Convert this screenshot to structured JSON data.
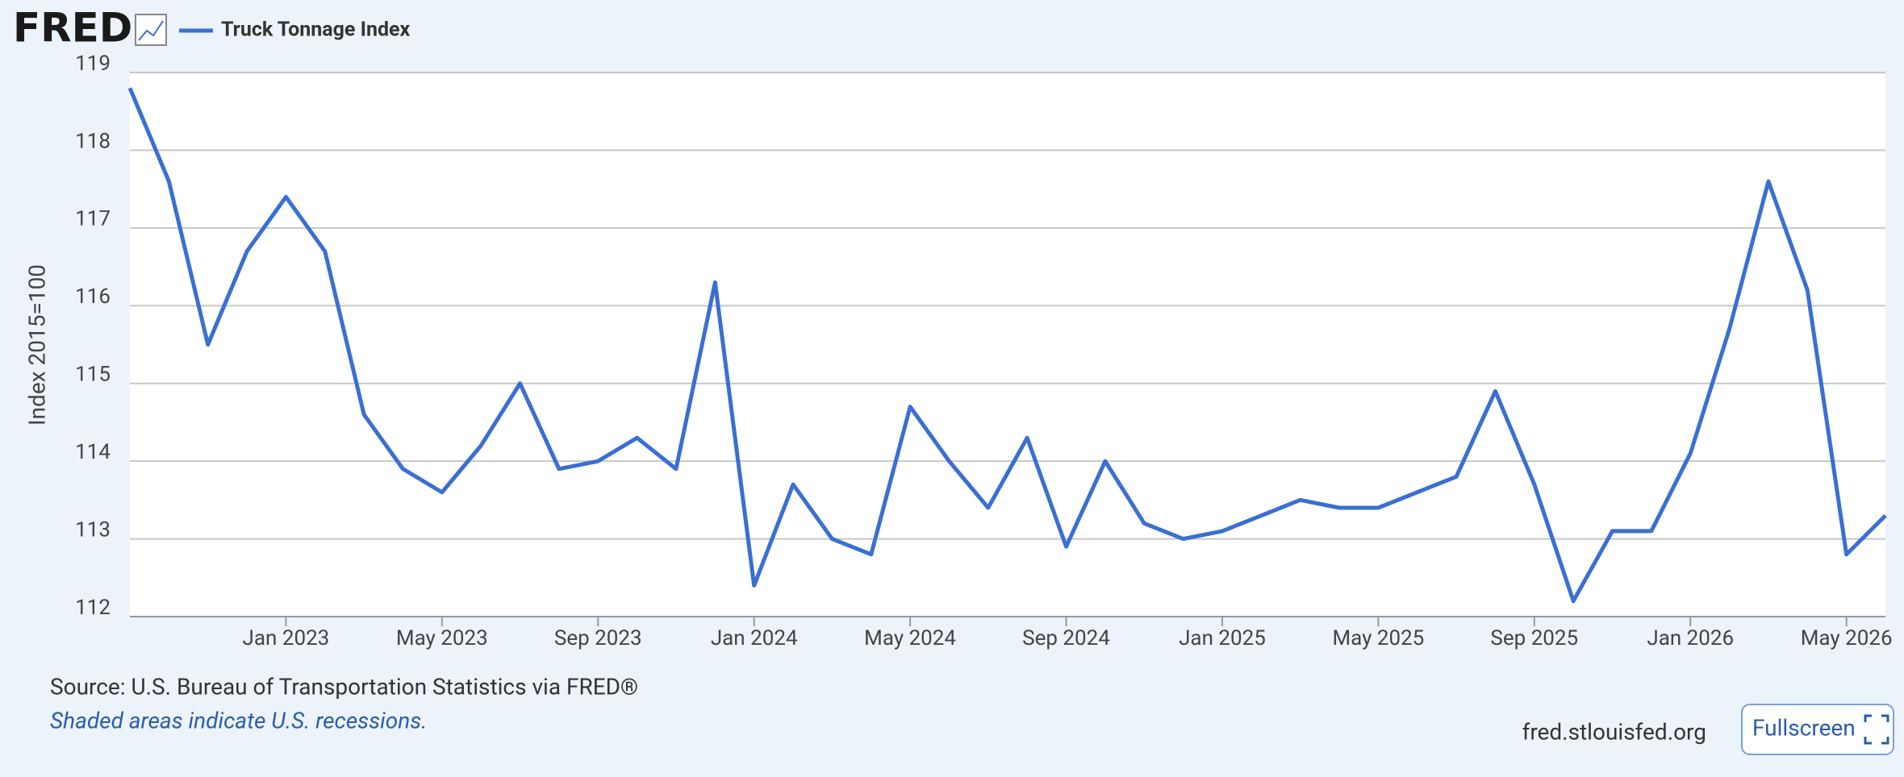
{
  "chart_data": {
    "type": "line",
    "logo": "FRED",
    "y_label": "Index 2015=100",
    "source": "Source: U.S. Bureau of Transportation Statistics via FRED®",
    "note": "Shaded areas indicate U.S. recessions.",
    "site": "fred.stlouisfed.org",
    "button": "Fullscreen",
    "x": [
      "2022-09",
      "2022-10",
      "2022-11",
      "2022-12",
      "2023-01",
      "2023-02",
      "2023-03",
      "2023-04",
      "2023-05",
      "2023-06",
      "2023-07",
      "2023-08",
      "2023-09",
      "2023-10",
      "2023-11",
      "2023-12",
      "2024-01",
      "2024-02",
      "2024-03",
      "2024-04",
      "2024-05",
      "2024-06",
      "2024-07",
      "2024-08",
      "2024-09",
      "2024-10",
      "2024-11",
      "2024-12",
      "2025-01",
      "2025-02",
      "2025-03",
      "2025-04",
      "2025-05",
      "2025-06",
      "2025-07",
      "2025-08",
      "2025-09",
      "2025-10",
      "2025-11",
      "2025-12",
      "2026-01",
      "2026-02",
      "2026-03",
      "2026-04",
      "2026-05",
      "2026-06"
    ],
    "series": [
      {
        "name": "Truck Tonnage Index",
        "color": "#3a6fd3",
        "values": [
          118.8,
          117.6,
          115.5,
          116.7,
          117.4,
          116.7,
          114.6,
          113.9,
          113.6,
          114.2,
          115.0,
          113.9,
          114.0,
          114.3,
          113.9,
          116.3,
          112.4,
          113.7,
          113.0,
          112.8,
          114.7,
          114.0,
          113.4,
          114.3,
          112.9,
          114.0,
          113.2,
          113.0,
          113.1,
          113.3,
          113.5,
          113.4,
          113.4,
          113.6,
          113.8,
          114.9,
          113.7,
          112.2,
          113.1,
          113.1,
          114.1,
          115.7,
          117.6,
          116.2,
          112.8,
          113.3
        ]
      }
    ],
    "xlim": [
      "2022-09",
      "2026-06"
    ],
    "xticks": [
      {
        "value": "2023-01",
        "label": "Jan 2023"
      },
      {
        "value": "2023-05",
        "label": "May 2023"
      },
      {
        "value": "2023-09",
        "label": "Sep 2023"
      },
      {
        "value": "2024-01",
        "label": "Jan 2024"
      },
      {
        "value": "2024-05",
        "label": "May 2024"
      },
      {
        "value": "2024-09",
        "label": "Sep 2024"
      },
      {
        "value": "2025-01",
        "label": "Jan 2025"
      },
      {
        "value": "2025-05",
        "label": "May 2025"
      },
      {
        "value": "2025-09",
        "label": "Sep 2025"
      },
      {
        "value": "2026-01",
        "label": "Jan 2026"
      },
      {
        "value": "2026-05",
        "label": "May 2026"
      }
    ],
    "ylim": [
      112,
      119
    ],
    "yticks": [
      112,
      113,
      114,
      115,
      116,
      117,
      118,
      119
    ],
    "grid": true
  }
}
